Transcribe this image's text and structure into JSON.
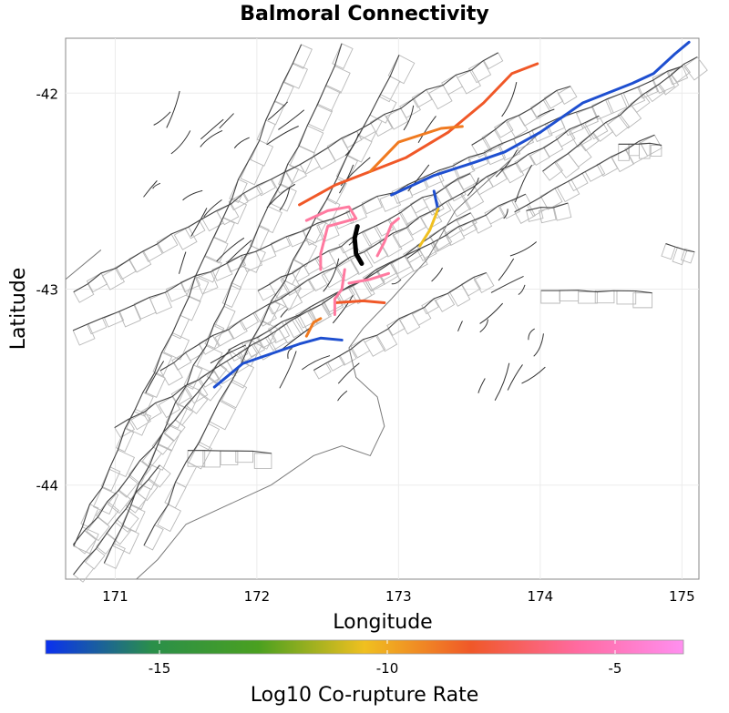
{
  "title": "Balmoral Connectivity",
  "axes": {
    "xlabel": "Longitude",
    "ylabel": "Latitude",
    "xlim": [
      170.65,
      175.12
    ],
    "ylim": [
      -44.48,
      -41.72
    ],
    "xticks": [
      171,
      172,
      173,
      174,
      175
    ],
    "yticks": [
      -42,
      -43,
      -44
    ]
  },
  "colorbar": {
    "label": "Log10 Co-rupture Rate",
    "range": [
      -17.5,
      -3.5
    ],
    "ticks": [
      "-15",
      "-10",
      "-5"
    ],
    "tick_values": [
      -15,
      -10,
      -5
    ],
    "colors": [
      "#0a30f0",
      "#2a8f4a",
      "#4aa020",
      "#f0c020",
      "#f05828",
      "#ff6aa0",
      "#ff8ff0"
    ]
  },
  "highlighted_sections": [
    {
      "name": "blue-northeast",
      "color": "#1e4fd0",
      "coords": [
        [
          174.0,
          -42.2
        ],
        [
          174.3,
          -42.05
        ],
        [
          174.65,
          -41.95
        ],
        [
          174.8,
          -41.9
        ],
        [
          174.95,
          -41.8
        ],
        [
          175.05,
          -41.74
        ]
      ]
    },
    {
      "name": "blue-central",
      "color": "#1e4fd0",
      "coords": [
        [
          172.95,
          -42.52
        ],
        [
          173.25,
          -42.42
        ],
        [
          173.55,
          -42.35
        ],
        [
          173.75,
          -42.3
        ],
        [
          174.0,
          -42.2
        ]
      ]
    },
    {
      "name": "blue-short",
      "color": "#1e4fd0",
      "coords": [
        [
          173.25,
          -42.5
        ],
        [
          173.28,
          -42.6
        ]
      ]
    },
    {
      "name": "blue-south",
      "color": "#1e4fd0",
      "coords": [
        [
          171.7,
          -43.5
        ],
        [
          171.9,
          -43.38
        ],
        [
          172.1,
          -43.33
        ],
        [
          172.3,
          -43.28
        ],
        [
          172.45,
          -43.25
        ],
        [
          172.6,
          -43.26
        ]
      ]
    },
    {
      "name": "orange-north",
      "color": "#f05828",
      "coords": [
        [
          172.3,
          -42.57
        ],
        [
          172.55,
          -42.47
        ],
        [
          172.8,
          -42.4
        ],
        [
          173.05,
          -42.33
        ],
        [
          173.35,
          -42.2
        ],
        [
          173.6,
          -42.05
        ],
        [
          173.8,
          -41.9
        ],
        [
          173.98,
          -41.85
        ]
      ]
    },
    {
      "name": "orange-mid",
      "color": "#f07a20",
      "coords": [
        [
          172.8,
          -42.4
        ],
        [
          173.0,
          -42.25
        ],
        [
          173.3,
          -42.18
        ],
        [
          173.45,
          -42.17
        ]
      ]
    },
    {
      "name": "orange-red",
      "color": "#f05828",
      "coords": [
        [
          172.55,
          -43.07
        ],
        [
          172.75,
          -43.06
        ],
        [
          172.9,
          -43.07
        ]
      ]
    },
    {
      "name": "orange-small",
      "color": "#f07a20",
      "coords": [
        [
          172.35,
          -43.24
        ],
        [
          172.4,
          -43.17
        ],
        [
          172.45,
          -43.15
        ]
      ]
    },
    {
      "name": "yellow-east",
      "color": "#f0c020",
      "coords": [
        [
          173.28,
          -42.59
        ],
        [
          173.22,
          -42.7
        ],
        [
          173.15,
          -42.78
        ]
      ]
    },
    {
      "name": "pink-north",
      "color": "#ff7aa0",
      "coords": [
        [
          172.35,
          -42.65
        ],
        [
          172.5,
          -42.6
        ],
        [
          172.65,
          -42.58
        ],
        [
          172.7,
          -42.64
        ],
        [
          172.5,
          -42.68
        ],
        [
          172.45,
          -42.82
        ],
        [
          172.45,
          -42.9
        ]
      ]
    },
    {
      "name": "pink-east",
      "color": "#ff7aa0",
      "coords": [
        [
          172.85,
          -42.83
        ],
        [
          172.9,
          -42.76
        ],
        [
          172.95,
          -42.67
        ],
        [
          173.0,
          -42.64
        ]
      ]
    },
    {
      "name": "pink-central",
      "color": "#ff7aa0",
      "coords": [
        [
          172.62,
          -42.9
        ],
        [
          172.6,
          -43.0
        ],
        [
          172.55,
          -43.05
        ],
        [
          172.55,
          -43.13
        ]
      ]
    },
    {
      "name": "pink-mid",
      "color": "#ff7aa0",
      "coords": [
        [
          172.65,
          -42.97
        ],
        [
          172.8,
          -42.95
        ],
        [
          172.93,
          -42.92
        ]
      ]
    },
    {
      "name": "balmoral-source",
      "color": "#000000",
      "coords": [
        [
          172.71,
          -42.68
        ],
        [
          172.69,
          -42.74
        ],
        [
          172.7,
          -42.82
        ],
        [
          172.74,
          -42.87
        ]
      ]
    }
  ]
}
